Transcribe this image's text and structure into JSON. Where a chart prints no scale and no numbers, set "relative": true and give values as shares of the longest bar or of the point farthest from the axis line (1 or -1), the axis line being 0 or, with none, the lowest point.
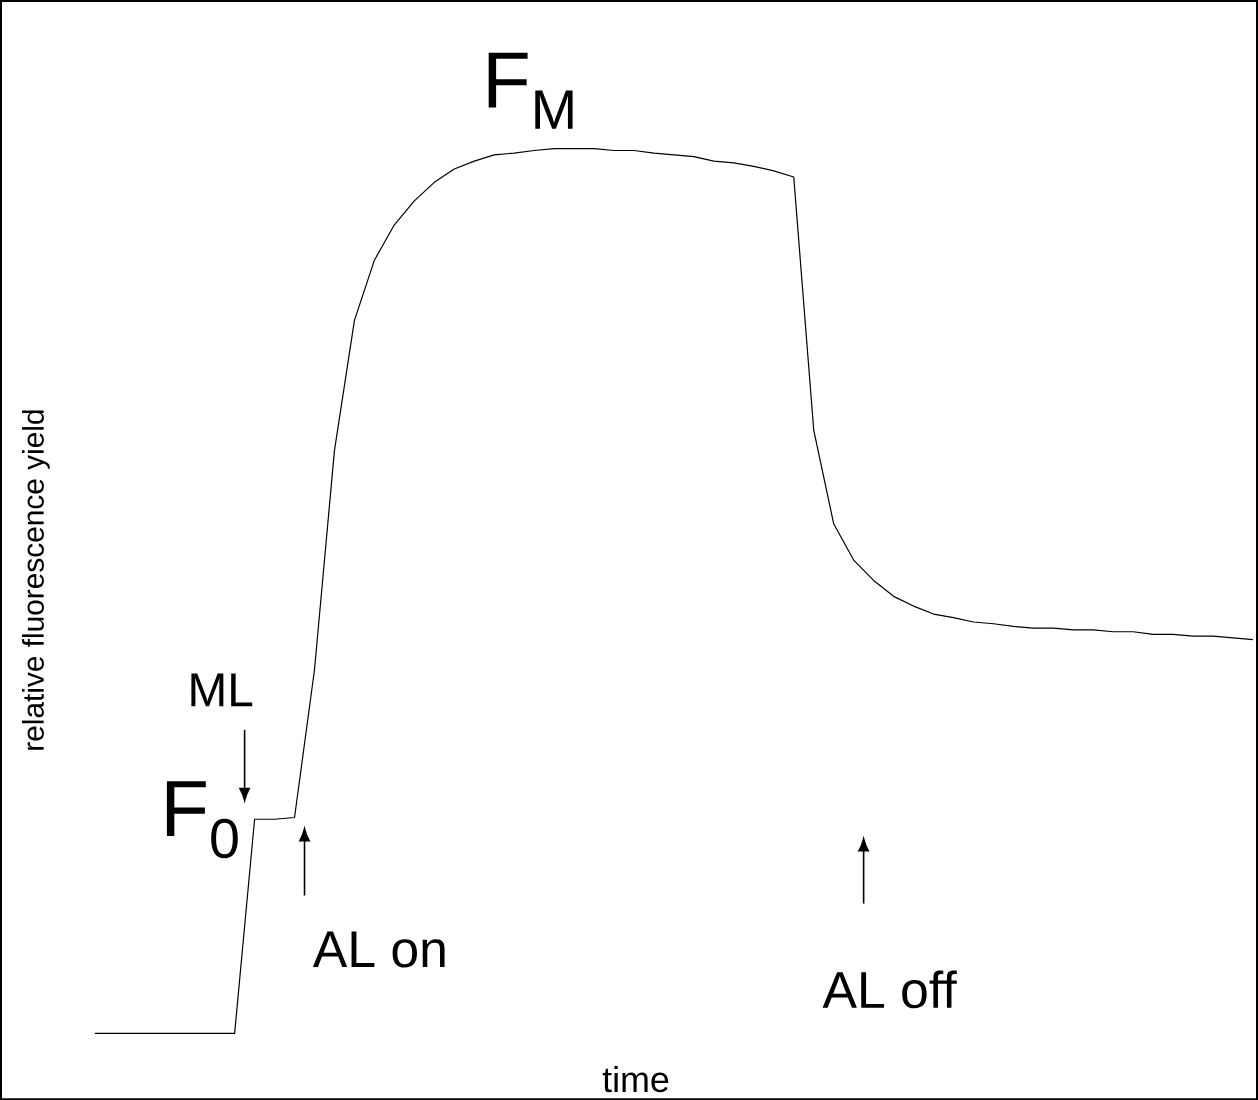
{
  "chart_data": {
    "type": "line",
    "relative": true,
    "xlabel": "time",
    "ylabel": "relative fluorescence yield",
    "categories": [
      null,
      null,
      null,
      null,
      null,
      null,
      null,
      null,
      null,
      null,
      null,
      null,
      null,
      null,
      null,
      null,
      null,
      null,
      null,
      null,
      null,
      null,
      null,
      null,
      null,
      null,
      null,
      null,
      null,
      null,
      null,
      null,
      null,
      null,
      null,
      null,
      null,
      null,
      null,
      null,
      null,
      null,
      null,
      null,
      null,
      null,
      null,
      null,
      null,
      null,
      null,
      null,
      null,
      null,
      null,
      null,
      null,
      null,
      null
    ],
    "series": [
      {
        "color": "#000000",
        "values": [
          0,
          0,
          0,
          0,
          0,
          0,
          0,
          0,
          0.242,
          0.242,
          0.244,
          0.411,
          0.659,
          0.806,
          0.874,
          0.914,
          0.941,
          0.962,
          0.977,
          0.986,
          0.993,
          0.995,
          0.998,
          1,
          1,
          1,
          0.998,
          0.998,
          0.995,
          0.993,
          0.991,
          0.986,
          0.984,
          0.98,
          0.975,
          0.968,
          0.682,
          0.576,
          0.535,
          0.512,
          0.494,
          0.483,
          0.474,
          0.47,
          0.465,
          0.463,
          0.46,
          0.458,
          0.458,
          0.456,
          0.456,
          0.454,
          0.454,
          0.451,
          0.451,
          0.449,
          0.449,
          0.447,
          0.445
        ]
      }
    ],
    "annotations": [
      "F$_{M}$",
      "F$_{0}$",
      "ML",
      "AL on",
      "AL off"
    ]
  }
}
